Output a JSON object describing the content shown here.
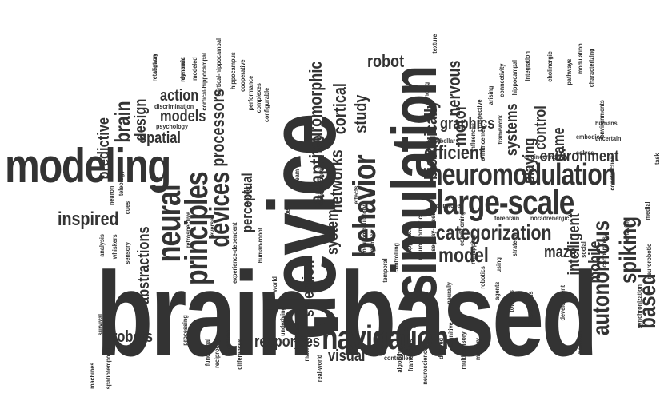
{
  "cloud": {
    "text_color": "#333333",
    "background_color": "#ffffff",
    "words": [
      {
        "text": "brain-based",
        "weight": 1.0
      },
      {
        "text": "device",
        "weight": 0.9
      },
      {
        "text": "simulation",
        "weight": 0.85
      },
      {
        "text": "modeling",
        "weight": 0.8
      },
      {
        "text": "neuromodulation",
        "weight": 0.62
      },
      {
        "text": "behavior",
        "weight": 0.6
      },
      {
        "text": "navigation",
        "weight": 0.56
      },
      {
        "text": "large-scale",
        "weight": 0.55
      },
      {
        "text": "principles",
        "weight": 0.52
      },
      {
        "text": "neural",
        "weight": 0.5
      },
      {
        "text": "categorization",
        "weight": 0.44
      },
      {
        "text": "inspired",
        "weight": 0.42
      },
      {
        "text": "devices",
        "weight": 0.4
      },
      {
        "text": "efficient",
        "weight": 0.38
      },
      {
        "text": "autonomous",
        "weight": 0.37
      },
      {
        "text": "spiking",
        "weight": 0.36
      },
      {
        "text": "based",
        "weight": 0.35
      },
      {
        "text": "model",
        "weight": 0.34
      },
      {
        "text": "adaptive",
        "weight": 0.32
      },
      {
        "text": "processors",
        "weight": 0.31
      },
      {
        "text": "brain",
        "weight": 0.3
      },
      {
        "text": "study",
        "weight": 0.28
      },
      {
        "text": "networks",
        "weight": 0.28
      },
      {
        "text": "cortical",
        "weight": 0.28
      },
      {
        "text": "neuromorphic",
        "weight": 0.28
      },
      {
        "text": "robot",
        "weight": 0.26
      },
      {
        "text": "biologically",
        "weight": 0.26
      },
      {
        "text": "motor",
        "weight": 0.26
      },
      {
        "text": "nervous",
        "weight": 0.26
      },
      {
        "text": "graphics",
        "weight": 0.26
      },
      {
        "text": "system",
        "weight": 0.26
      },
      {
        "text": "selection",
        "weight": 0.26
      },
      {
        "text": "control",
        "weight": 0.26
      },
      {
        "text": "game",
        "weight": 0.26
      },
      {
        "text": "systems",
        "weight": 0.24
      },
      {
        "text": "playing",
        "weight": 0.24
      },
      {
        "text": "environment",
        "weight": 0.24
      },
      {
        "text": "intelligent",
        "weight": 0.24
      },
      {
        "text": "mobile",
        "weight": 0.24
      },
      {
        "text": "maze",
        "weight": 0.24
      },
      {
        "text": "abstractions",
        "weight": 0.24
      },
      {
        "text": "predictive",
        "weight": 0.24
      },
      {
        "text": "design",
        "weight": 0.24
      },
      {
        "text": "action",
        "weight": 0.24
      },
      {
        "text": "models",
        "weight": 0.24
      },
      {
        "text": "spatial",
        "weight": 0.24
      },
      {
        "text": "perceptual",
        "weight": 0.24
      },
      {
        "text": "robots",
        "weight": 0.24
      },
      {
        "text": "responses",
        "weight": 0.24
      },
      {
        "text": "visual",
        "weight": 0.22
      },
      {
        "text": "segway",
        "weight": 0.1
      },
      {
        "text": "reentrant",
        "weight": 0.1
      },
      {
        "text": "modeled",
        "weight": 0.1
      },
      {
        "text": "cortical-hippocampal",
        "weight": 0.1
      },
      {
        "text": "discrimination",
        "weight": 0.1
      },
      {
        "text": "psychology",
        "weight": 0.1
      },
      {
        "text": "cortical-hippocampal",
        "weight": 0.1
      },
      {
        "text": "hippocampus",
        "weight": 0.1
      },
      {
        "text": "cooperative",
        "weight": 0.1
      },
      {
        "text": "performance",
        "weight": 0.1
      },
      {
        "text": "complexes",
        "weight": 0.1
      },
      {
        "text": "configurable",
        "weight": 0.1
      },
      {
        "text": "texture",
        "weight": 0.1
      },
      {
        "text": "binding",
        "weight": 0.1
      },
      {
        "text": "cerebellar",
        "weight": 0.1
      },
      {
        "text": "controller",
        "weight": 0.1
      },
      {
        "text": "forebrain",
        "weight": 0.1
      },
      {
        "text": "noradrenergic",
        "weight": 0.1
      },
      {
        "text": "engineering",
        "weight": 0.1
      },
      {
        "text": "solves",
        "weight": 0.1
      },
      {
        "text": "humans",
        "weight": 0.1
      },
      {
        "text": "embodied",
        "weight": 0.1
      },
      {
        "text": "uncertain",
        "weight": 0.1
      },
      {
        "text": "prospective",
        "weight": 0.1
      },
      {
        "text": "arising",
        "weight": 0.1
      },
      {
        "text": "connectivity",
        "weight": 0.1
      },
      {
        "text": "influences",
        "weight": 0.1
      },
      {
        "text": "enhancement",
        "weight": 0.1
      },
      {
        "text": "framework",
        "weight": 0.1
      },
      {
        "text": "hippocampal",
        "weight": 0.1
      },
      {
        "text": "integration",
        "weight": 0.1
      },
      {
        "text": "cholinergic",
        "weight": 0.1
      },
      {
        "text": "pathways",
        "weight": 0.1
      },
      {
        "text": "modulation",
        "weight": 0.1
      },
      {
        "text": "characterizing",
        "weight": 0.1
      },
      {
        "text": "environments",
        "weight": 0.1
      },
      {
        "text": "construction",
        "weight": 0.1
      },
      {
        "text": "medial",
        "weight": 0.1
      },
      {
        "text": "task",
        "weight": 0.1
      },
      {
        "text": "neurorobotic",
        "weight": 0.1
      },
      {
        "text": "synchronization",
        "weight": 0.1
      },
      {
        "text": "behaving",
        "weight": 0.1
      },
      {
        "text": "cooperates",
        "weight": 0.1
      },
      {
        "text": "social",
        "weight": 0.1
      },
      {
        "text": "development",
        "weight": 0.1
      },
      {
        "text": "interactions",
        "weight": 0.1
      },
      {
        "text": "towards",
        "weight": 0.1
      },
      {
        "text": "agents",
        "weight": 0.1
      },
      {
        "text": "memory",
        "weight": 0.1
      },
      {
        "text": "multi-sensory",
        "weight": 0.1
      },
      {
        "text": "cognitive",
        "weight": 0.1
      },
      {
        "text": "delayed",
        "weight": 0.1
      },
      {
        "text": "neuroscience",
        "weight": 0.1
      },
      {
        "text": "frameworks",
        "weight": 0.1
      },
      {
        "text": "algorithm",
        "weight": 0.1
      },
      {
        "text": "controlled",
        "weight": 0.1
      },
      {
        "text": "individual",
        "weight": 0.1
      },
      {
        "text": "underlying",
        "weight": 0.1
      },
      {
        "text": "world",
        "weight": 0.1
      },
      {
        "text": "bearded",
        "weight": 0.1
      },
      {
        "text": "strategy",
        "weight": 0.1
      },
      {
        "text": "using",
        "weight": 0.1
      },
      {
        "text": "robotics",
        "weight": 0.1
      },
      {
        "text": "remapping",
        "weight": 0.1
      },
      {
        "text": "conditioning",
        "weight": 0.1
      },
      {
        "text": "neurally",
        "weight": 0.1
      },
      {
        "text": "segway-based",
        "weight": 0.1
      },
      {
        "text": "neuroinformatics",
        "weight": 0.1
      },
      {
        "text": "approach",
        "weight": 0.1
      },
      {
        "text": "controlling",
        "weight": 0.1
      },
      {
        "text": "temporal",
        "weight": 0.1
      },
      {
        "text": "games",
        "weight": 0.1
      },
      {
        "text": "neuromodulatory",
        "weight": 0.1
      },
      {
        "text": "effects",
        "weight": 0.1
      },
      {
        "text": "causal",
        "weight": 0.1
      },
      {
        "text": "socioeconomic",
        "weight": 0.1
      },
      {
        "text": "team",
        "weight": 0.1
      },
      {
        "text": "lobe",
        "weight": 0.1
      },
      {
        "text": "retrospective",
        "weight": 0.1
      },
      {
        "text": "reverse",
        "weight": 0.1
      },
      {
        "text": "experience-dependent",
        "weight": 0.1
      },
      {
        "text": "soccer",
        "weight": 0.1
      },
      {
        "text": "human-robot",
        "weight": 0.1
      },
      {
        "text": "cues",
        "weight": 0.1
      },
      {
        "text": "teleology",
        "weight": 0.1
      },
      {
        "text": "neuron",
        "weight": 0.1
      },
      {
        "text": "analysis",
        "weight": 0.1
      },
      {
        "text": "whiskers",
        "weight": 0.1
      },
      {
        "text": "sensory",
        "weight": 0.1
      },
      {
        "text": "spatiotemporal",
        "weight": 0.1
      },
      {
        "text": "survival",
        "weight": 0.1
      },
      {
        "text": "machines",
        "weight": 0.1
      },
      {
        "text": "processing",
        "weight": 0.1
      },
      {
        "text": "functional",
        "weight": 0.1
      },
      {
        "text": "reciprocity",
        "weight": 0.1
      },
      {
        "text": "attention",
        "weight": 0.1
      },
      {
        "text": "differences",
        "weight": 0.1
      },
      {
        "text": "machine",
        "weight": 0.1
      },
      {
        "text": "real-world",
        "weight": 0.1
      },
      {
        "text": "retaliation",
        "weight": 0.1
      },
      {
        "text": "dynamic",
        "weight": 0.1
      }
    ]
  }
}
